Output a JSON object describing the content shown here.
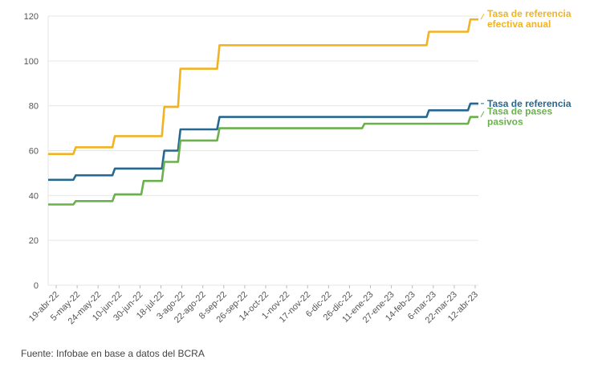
{
  "chart_data": {
    "type": "line",
    "ylim": [
      0,
      120
    ],
    "yticks": [
      0,
      20,
      40,
      60,
      80,
      100,
      120
    ],
    "x_tick_labels": [
      "19-abr-22",
      "5-may-22",
      "24-may-22",
      "10-jun-22",
      "30-jun-22",
      "18-jul-22",
      "3-ago-22",
      "22-ago-22",
      "8-sep-22",
      "26-sep-22",
      "14-oct-22",
      "1-nov-22",
      "17-nov-22",
      "6-dic-22",
      "26-dic-22",
      "11-ene-23",
      "27-ene-23",
      "14-feb-23",
      "6-mar-23",
      "22-mar-23",
      "12-abr-23"
    ],
    "grid": true,
    "legend": "right, at line ends",
    "series": [
      {
        "name": "Tasa de referencia efectiva anual",
        "color": "#f0b323",
        "points": [
          [
            "2022-04-19",
            58.5
          ],
          [
            "2022-05-13",
            61.5
          ],
          [
            "2022-06-16",
            66.5
          ],
          [
            "2022-07-29",
            79.5
          ],
          [
            "2022-08-12",
            96.5
          ],
          [
            "2022-09-15",
            107.0
          ],
          [
            "2023-03-16",
            113.0
          ],
          [
            "2023-04-21",
            118.5
          ],
          [
            "2023-04-28",
            118.5
          ]
        ]
      },
      {
        "name": "Tasa de referencia",
        "color": "#276891",
        "points": [
          [
            "2022-04-19",
            47.0
          ],
          [
            "2022-05-13",
            49.0
          ],
          [
            "2022-06-16",
            52.0
          ],
          [
            "2022-07-29",
            60.0
          ],
          [
            "2022-08-12",
            69.5
          ],
          [
            "2022-09-15",
            75.0
          ],
          [
            "2023-03-16",
            78.0
          ],
          [
            "2023-04-21",
            81.0
          ],
          [
            "2023-04-28",
            81.0
          ]
        ]
      },
      {
        "name": "Tasa de pases pasivos",
        "color": "#6ab04c",
        "points": [
          [
            "2022-04-19",
            36.0
          ],
          [
            "2022-05-13",
            37.5
          ],
          [
            "2022-06-16",
            40.5
          ],
          [
            "2022-07-11",
            46.5
          ],
          [
            "2022-07-29",
            55.0
          ],
          [
            "2022-08-12",
            64.5
          ],
          [
            "2022-09-15",
            70.0
          ],
          [
            "2023-01-19",
            72.0
          ],
          [
            "2023-04-21",
            75.0
          ],
          [
            "2023-04-28",
            75.0
          ]
        ]
      }
    ],
    "legend_lines": [
      [
        "Tasa de referencia",
        "efectiva anual"
      ],
      [
        "Tasa de referencia"
      ],
      [
        "Tasa de pases",
        "pasivos"
      ]
    ]
  },
  "source_note": "Fuente: Infobae en base a datos del BCRA"
}
